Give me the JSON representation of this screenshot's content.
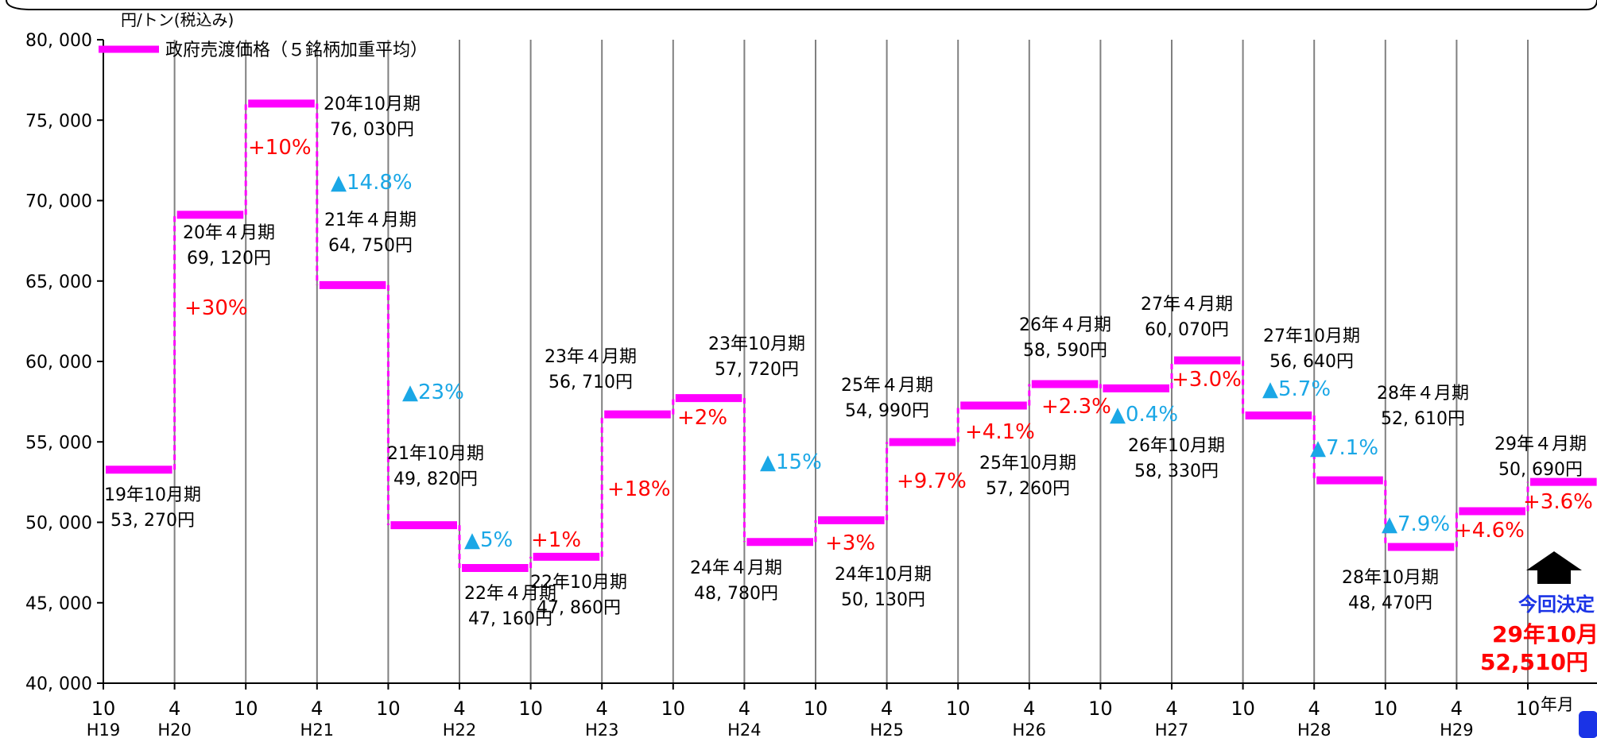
{
  "chart_data": {
    "type": "line",
    "unit_label": "円/トン(税込み)",
    "ylim": [
      40000,
      80000
    ],
    "y_ticks": [
      "80, 000",
      "75, 000",
      "70, 000",
      "65, 000",
      "60, 000",
      "55, 000",
      "50, 000",
      "45, 000",
      "40, 000"
    ],
    "y_tick_values": [
      80000,
      75000,
      70000,
      65000,
      60000,
      55000,
      50000,
      45000,
      40000
    ],
    "x_ticks": [
      "10",
      "4",
      "10",
      "4",
      "10",
      "4",
      "10",
      "4",
      "10",
      "4",
      "10",
      "4",
      "10",
      "4",
      "10",
      "4",
      "10",
      "4",
      "10",
      "4",
      "10"
    ],
    "x_years": [
      "H19",
      "H20",
      "",
      "H21",
      "",
      "H22",
      "",
      "H23",
      "",
      "H24",
      "",
      "H25",
      "",
      "H26",
      "",
      "H27",
      "",
      "H28",
      "",
      "H29",
      ""
    ],
    "x_axis_suffix": "年月",
    "legend": "政府売渡価格（５銘柄加重平均）",
    "series": [
      {
        "name": "政府売渡価格（５銘柄加重平均）",
        "color": "#ff00ff",
        "periods": [
          {
            "label": "19年10月期",
            "price": "53, 270円",
            "value": 53270
          },
          {
            "label": "20年４月期",
            "price": "69, 120円",
            "value": 69120,
            "change": "+30%",
            "dir": "up"
          },
          {
            "label": "20年10月期",
            "price": "76, 030円",
            "value": 76030,
            "change": "+10%",
            "dir": "up"
          },
          {
            "label": "21年４月期",
            "price": "64, 750円",
            "value": 64750,
            "change": "▲14.8%",
            "dir": "down"
          },
          {
            "label": "21年10月期",
            "price": "49, 820円",
            "value": 49820,
            "change": "▲23%",
            "dir": "down"
          },
          {
            "label": "22年４月期",
            "price": "47, 160円",
            "value": 47160,
            "change": "▲5%",
            "dir": "down"
          },
          {
            "label": "22年10月期",
            "price": "47, 860円",
            "value": 47860,
            "change": "+1%",
            "dir": "up"
          },
          {
            "label": "23年４月期",
            "price": "56, 710円",
            "value": 56710,
            "change": "+18%",
            "dir": "up"
          },
          {
            "label": "23年10月期",
            "price": "57, 720円",
            "value": 57720,
            "change": "+2%",
            "dir": "up"
          },
          {
            "label": "24年４月期",
            "price": "48, 780円",
            "value": 48780,
            "change": "▲15%",
            "dir": "down"
          },
          {
            "label": "24年10月期",
            "price": "50, 130円",
            "value": 50130,
            "change": "+3%",
            "dir": "up"
          },
          {
            "label": "25年４月期",
            "price": "54, 990円",
            "value": 54990,
            "change": "+9.7%",
            "dir": "up"
          },
          {
            "label": "25年10月期",
            "price": "57, 260円",
            "value": 57260,
            "change": "+4.1%",
            "dir": "up"
          },
          {
            "label": "26年４月期",
            "price": "58, 590円",
            "value": 58590,
            "change": "+2.3%",
            "dir": "up"
          },
          {
            "label": "26年10月期",
            "price": "58, 330円",
            "value": 58330,
            "change": "▲0.4%",
            "dir": "down"
          },
          {
            "label": "27年４月期",
            "price": "60, 070円",
            "value": 60070,
            "change": "+3.0%",
            "dir": "up"
          },
          {
            "label": "27年10月期",
            "price": "56, 640円",
            "value": 56640,
            "change": "▲5.7%",
            "dir": "down"
          },
          {
            "label": "28年４月期",
            "price": "52, 610円",
            "value": 52610,
            "change": "▲7.1%",
            "dir": "down"
          },
          {
            "label": "28年10月期",
            "price": "48, 470円",
            "value": 48470,
            "change": "▲7.9%",
            "dir": "down"
          },
          {
            "label": "29年４月期",
            "price": "50, 690円",
            "value": 50690,
            "change": "+4.6%",
            "dir": "up"
          },
          {
            "label": "29年10月期",
            "price": "52,510円",
            "value": 52510,
            "change": "+3.6%",
            "dir": "up"
          }
        ]
      }
    ],
    "highlight": {
      "line1": "今回決定",
      "line2": "29年10月期",
      "line3": "52,510円"
    },
    "colors": {
      "up": "#ff0000",
      "down": "#1aa7e6",
      "grid": "#808080",
      "highlight_blue": "#1a33e6"
    }
  }
}
